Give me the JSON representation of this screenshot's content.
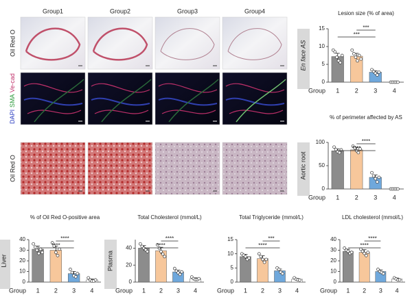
{
  "panels": {
    "columns": [
      "Group1",
      "Group2",
      "Group3",
      "Group4"
    ],
    "rows": [
      {
        "label": "Oil Red O"
      },
      {
        "parts": [
          "DAPI",
          "SMA",
          "Ve-cad"
        ]
      },
      {
        "label": "Oil Red O"
      }
    ]
  },
  "chart_data": [
    {
      "type": "bar",
      "title": "Lesion size (% of area)",
      "side_label": "En face AS",
      "xlabel": "Group",
      "categories": [
        "1",
        "2",
        "3",
        "4"
      ],
      "values": [
        7.2,
        7.3,
        2.8,
        0
      ],
      "errors": [
        0.9,
        0.8,
        0.4,
        0
      ],
      "points": [
        [
          9,
          8.5,
          7,
          6,
          5.5,
          7.5
        ],
        [
          9,
          8,
          7,
          6,
          7.5,
          6.5
        ],
        [
          3.5,
          3,
          2.5,
          2,
          2.8
        ],
        [
          0,
          0,
          0,
          0,
          0
        ]
      ],
      "colors": [
        "#8c8c8c",
        "#f7c79b",
        "#6fa8dc",
        "#ffffff"
      ],
      "ylim": [
        0,
        15
      ],
      "yticks": [
        0,
        5,
        10,
        15
      ],
      "annotations": [
        {
          "label": "***",
          "from": "1",
          "to": "3"
        },
        {
          "label": "***",
          "from": "2",
          "to": "3"
        }
      ]
    },
    {
      "type": "bar",
      "title": "% of perimeter affected by AS",
      "side_label": "Aortic root",
      "xlabel": "Group",
      "categories": [
        "1",
        "2",
        "3",
        "4"
      ],
      "values": [
        82,
        84,
        25,
        0
      ],
      "errors": [
        4,
        5,
        5,
        0
      ],
      "points": [
        [
          90,
          85,
          80,
          78,
          84
        ],
        [
          92,
          88,
          82,
          78,
          86
        ],
        [
          35,
          28,
          22,
          15,
          25
        ],
        [
          0,
          0,
          0,
          0,
          0
        ]
      ],
      "colors": [
        "#8c8c8c",
        "#f7c79b",
        "#6fa8dc",
        "#ffffff"
      ],
      "ylim": [
        0,
        100
      ],
      "yticks": [
        0,
        50,
        100
      ],
      "annotations": [
        {
          "label": "****",
          "from": "1",
          "to": "3"
        },
        {
          "label": "****",
          "from": "2",
          "to": "3"
        }
      ]
    },
    {
      "type": "bar",
      "title": "% of Oil Red O-positive area",
      "side_label": "Liver",
      "xlabel": "Group",
      "categories": [
        "1",
        "2",
        "3",
        "4"
      ],
      "values": [
        31,
        30,
        8,
        2
      ],
      "errors": [
        3,
        4,
        2,
        1
      ],
      "points": [
        [
          36,
          33,
          30,
          27,
          31,
          28
        ],
        [
          37,
          34,
          28,
          25,
          31
        ],
        [
          12,
          9,
          6,
          5,
          8
        ],
        [
          4,
          2,
          1,
          1,
          2
        ]
      ],
      "colors": [
        "#8c8c8c",
        "#f7c79b",
        "#6fa8dc",
        "#ffffff"
      ],
      "ylim": [
        0,
        40
      ],
      "yticks": [
        0,
        10,
        20,
        30,
        40
      ],
      "annotations": [
        {
          "label": "****",
          "from": "1",
          "to": "3"
        },
        {
          "label": "****",
          "from": "2",
          "to": "3"
        }
      ]
    },
    {
      "type": "bar",
      "title": "Total Cholesterol (mmol/L)",
      "side_label": "Plasma",
      "xlabel": "Group",
      "categories": [
        "1",
        "2",
        "3",
        "4"
      ],
      "values": [
        40,
        37,
        12,
        4
      ],
      "errors": [
        3,
        4,
        2,
        1
      ],
      "points": [
        [
          45,
          42,
          40,
          38,
          36
        ],
        [
          44,
          40,
          36,
          33,
          30
        ],
        [
          16,
          13,
          11,
          9,
          12
        ],
        [
          6,
          4,
          3,
          3,
          4
        ]
      ],
      "colors": [
        "#8c8c8c",
        "#f7c79b",
        "#6fa8dc",
        "#ffffff"
      ],
      "ylim": [
        0,
        50
      ],
      "yticks": [
        0,
        20,
        40
      ],
      "annotations": [
        {
          "label": "****",
          "from": "1",
          "to": "3"
        },
        {
          "label": "****",
          "from": "2",
          "to": "3"
        }
      ]
    },
    {
      "type": "bar",
      "title": "Total Triglyceride (mmol/L)",
      "xlabel": "Group",
      "categories": [
        "1",
        "2",
        "3",
        "4"
      ],
      "values": [
        9,
        8.3,
        4,
        1
      ],
      "errors": [
        0.8,
        1,
        0.6,
        0.3
      ],
      "points": [
        [
          10,
          9.5,
          9,
          8,
          8.5
        ],
        [
          10,
          9,
          8,
          7,
          8
        ],
        [
          5,
          4.5,
          3.5,
          3
        ],
        [
          1.5,
          1,
          0.8,
          0.7
        ]
      ],
      "colors": [
        "#8c8c8c",
        "#f7c79b",
        "#6fa8dc",
        "#ffffff"
      ],
      "ylim": [
        0,
        15
      ],
      "yticks": [
        0,
        5,
        10,
        15
      ],
      "annotations": [
        {
          "label": "****",
          "from": "1",
          "to": "3"
        },
        {
          "label": "***",
          "from": "2",
          "to": "3"
        }
      ]
    },
    {
      "type": "bar",
      "title": "LDL cholesterol (mmol/L)",
      "xlabel": "Group",
      "categories": [
        "1",
        "2",
        "3",
        "4"
      ],
      "values": [
        29,
        28,
        10,
        3
      ],
      "errors": [
        2,
        2.5,
        1.5,
        0.8
      ],
      "points": [
        [
          32,
          30,
          29,
          27,
          28
        ],
        [
          31,
          29,
          27,
          25,
          28
        ],
        [
          12,
          10,
          9,
          8
        ],
        [
          4,
          3,
          2,
          2
        ]
      ],
      "colors": [
        "#8c8c8c",
        "#f7c79b",
        "#6fa8dc",
        "#ffffff"
      ],
      "ylim": [
        0,
        40
      ],
      "yticks": [
        0,
        10,
        20,
        30,
        40
      ],
      "annotations": [
        {
          "label": "****",
          "from": "1",
          "to": "3"
        },
        {
          "label": "****",
          "from": "2",
          "to": "3"
        }
      ]
    }
  ]
}
